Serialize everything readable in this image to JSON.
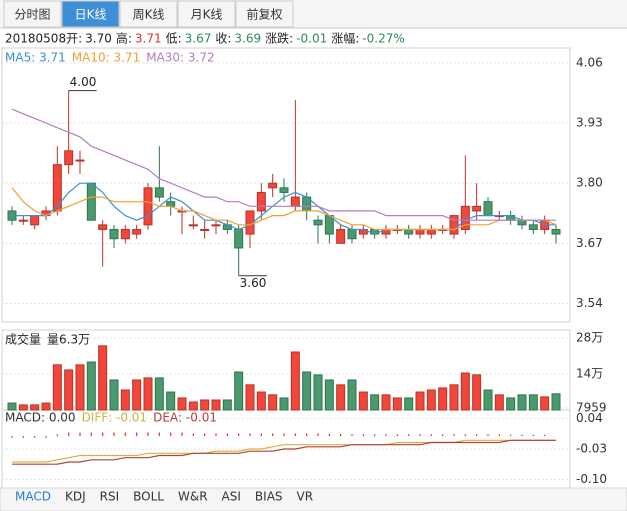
{
  "tabs": [
    {
      "label": "分时图"
    },
    {
      "label": "日K线",
      "active": true
    },
    {
      "label": "周K线"
    },
    {
      "label": "月K线"
    },
    {
      "label": "前复权"
    }
  ],
  "info": {
    "date": "20180508",
    "items": [
      {
        "label": "开:",
        "value": "3.70",
        "color": "#222222"
      },
      {
        "label": "高:",
        "value": "3.71",
        "color": "#e0302a"
      },
      {
        "label": "低:",
        "value": "3.67",
        "color": "#2e8b57"
      },
      {
        "label": "收:",
        "value": "3.69",
        "color": "#2e8b57"
      },
      {
        "label": "涨跌:",
        "value": "-0.01",
        "color": "#2e8b57"
      },
      {
        "label": "涨幅:",
        "value": "-0.27%",
        "color": "#2e8b57"
      }
    ]
  },
  "chart_data": [
    {
      "type": "candlestick",
      "legend_separator": ": ",
      "ylim": [
        3.5,
        4.09
      ],
      "yticks": [
        4.06,
        3.93,
        {
          "value": 3.8,
          "label": "3.80"
        },
        3.67,
        3.54
      ],
      "grid": true,
      "up_color": "#f0473a",
      "down_color": "#4a9a6e",
      "open": [
        3.74,
        3.72,
        3.71,
        3.73,
        3.74,
        3.84,
        3.85,
        3.8,
        3.7,
        3.7,
        3.68,
        3.69,
        3.71,
        3.79,
        3.76,
        3.74,
        3.71,
        3.7,
        3.71,
        3.71,
        3.7,
        3.69,
        3.74,
        3.79,
        3.79,
        3.75,
        3.77,
        3.72,
        3.73,
        3.67,
        3.7,
        3.69,
        3.7,
        3.69,
        3.7,
        3.7,
        3.69,
        3.69,
        3.7,
        3.69,
        3.7,
        3.74,
        3.76,
        3.73,
        3.73,
        3.72,
        3.71,
        3.7,
        3.7
      ],
      "high": [
        3.75,
        3.73,
        3.73,
        3.75,
        3.88,
        4.0,
        3.87,
        3.8,
        3.72,
        3.71,
        3.71,
        3.71,
        3.8,
        3.88,
        3.78,
        3.75,
        3.73,
        3.72,
        3.72,
        3.72,
        3.71,
        3.74,
        3.8,
        3.82,
        3.81,
        3.98,
        3.78,
        3.73,
        3.73,
        3.71,
        3.71,
        3.71,
        3.7,
        3.71,
        3.71,
        3.71,
        3.71,
        3.71,
        3.71,
        3.73,
        3.86,
        3.8,
        3.77,
        3.74,
        3.74,
        3.73,
        3.72,
        3.73,
        3.71
      ],
      "low": [
        3.71,
        3.71,
        3.7,
        3.72,
        3.73,
        3.82,
        3.82,
        3.72,
        3.62,
        3.66,
        3.67,
        3.68,
        3.7,
        3.76,
        3.73,
        3.69,
        3.7,
        3.68,
        3.69,
        3.69,
        3.6,
        3.66,
        3.72,
        3.77,
        3.76,
        3.74,
        3.72,
        3.67,
        3.67,
        3.67,
        3.67,
        3.68,
        3.68,
        3.68,
        3.69,
        3.68,
        3.68,
        3.68,
        3.69,
        3.68,
        3.69,
        3.72,
        3.73,
        3.72,
        3.71,
        3.7,
        3.69,
        3.69,
        3.67
      ],
      "close": [
        3.72,
        3.72,
        3.73,
        3.74,
        3.84,
        3.87,
        3.85,
        3.72,
        3.71,
        3.68,
        3.7,
        3.7,
        3.79,
        3.77,
        3.75,
        3.74,
        3.71,
        3.7,
        3.71,
        3.7,
        3.66,
        3.74,
        3.78,
        3.8,
        3.78,
        3.77,
        3.74,
        3.71,
        3.69,
        3.7,
        3.68,
        3.7,
        3.69,
        3.7,
        3.7,
        3.69,
        3.7,
        3.7,
        3.7,
        3.73,
        3.75,
        3.75,
        3.73,
        3.73,
        3.72,
        3.71,
        3.7,
        3.72,
        3.69
      ],
      "series": [
        {
          "name": "MA5",
          "color": "#3a8fd6",
          "value_label": "3.71",
          "values": [
            3.73,
            3.73,
            3.73,
            3.73,
            3.75,
            3.78,
            3.8,
            3.8,
            3.78,
            3.75,
            3.73,
            3.72,
            3.73,
            3.75,
            3.77,
            3.76,
            3.74,
            3.72,
            3.72,
            3.71,
            3.7,
            3.71,
            3.73,
            3.75,
            3.77,
            3.78,
            3.77,
            3.75,
            3.73,
            3.71,
            3.7,
            3.7,
            3.69,
            3.7,
            3.7,
            3.7,
            3.7,
            3.7,
            3.7,
            3.7,
            3.72,
            3.73,
            3.73,
            3.73,
            3.73,
            3.72,
            3.72,
            3.71,
            3.71
          ]
        },
        {
          "name": "MA10",
          "color": "#f0a030",
          "value_label": "3.71",
          "values": [
            3.79,
            3.76,
            3.74,
            3.73,
            3.74,
            3.75,
            3.76,
            3.77,
            3.77,
            3.76,
            3.76,
            3.76,
            3.76,
            3.75,
            3.75,
            3.74,
            3.74,
            3.73,
            3.72,
            3.72,
            3.71,
            3.71,
            3.72,
            3.73,
            3.73,
            3.74,
            3.74,
            3.74,
            3.73,
            3.72,
            3.71,
            3.71,
            3.7,
            3.7,
            3.7,
            3.7,
            3.7,
            3.7,
            3.7,
            3.7,
            3.71,
            3.71,
            3.71,
            3.72,
            3.72,
            3.72,
            3.72,
            3.72,
            3.71
          ]
        },
        {
          "name": "MA30",
          "color": "#b07fc0",
          "value_label": "3.72",
          "values": [
            3.96,
            3.95,
            3.94,
            3.93,
            3.92,
            3.91,
            3.9,
            3.88,
            3.87,
            3.86,
            3.85,
            3.84,
            3.83,
            3.81,
            3.8,
            3.79,
            3.78,
            3.77,
            3.77,
            3.76,
            3.76,
            3.75,
            3.75,
            3.75,
            3.75,
            3.75,
            3.75,
            3.75,
            3.74,
            3.74,
            3.74,
            3.74,
            3.74,
            3.73,
            3.73,
            3.73,
            3.73,
            3.73,
            3.73,
            3.72,
            3.72,
            3.72,
            3.72,
            3.72,
            3.72,
            3.72,
            3.72,
            3.72,
            3.72
          ]
        }
      ],
      "annotations": [
        {
          "value": 4.0,
          "label": "4.00"
        },
        {
          "value": 3.6,
          "label": "3.60"
        }
      ]
    },
    {
      "type": "volume",
      "title": "成交量",
      "series_label": "量6.3万",
      "ylim": [
        0,
        300000
      ],
      "yticks": [
        {
          "value": 280000,
          "label": "28万"
        },
        {
          "value": 140000,
          "label": "14万"
        },
        7959
      ],
      "values": [
        27000,
        20000,
        20000,
        27000,
        176000,
        156000,
        176000,
        187000,
        250000,
        117000,
        78000,
        117000,
        125000,
        125000,
        70000,
        47000,
        31000,
        39000,
        39000,
        39000,
        148000,
        98000,
        70000,
        59000,
        47000,
        226000,
        148000,
        137000,
        117000,
        98000,
        117000,
        70000,
        59000,
        59000,
        47000,
        47000,
        70000,
        78000,
        86000,
        98000,
        144000,
        137000,
        78000,
        59000,
        47000,
        59000,
        59000,
        51000,
        63000
      ]
    },
    {
      "type": "macd",
      "legend_separator": ": ",
      "ylim": [
        -0.12,
        0.06
      ],
      "yticks": [
        0.04,
        -0.03,
        {
          "value": -0.1,
          "label": "-0.10"
        }
      ],
      "up_color": "#e0302a",
      "down_color": "#2e8b57",
      "series": [
        {
          "name": "MACD",
          "color": "#333333",
          "value_label": "0.00",
          "values": [
            -0.004,
            -0.004,
            -0.004,
            -0.004,
            0.004,
            0.008,
            0.008,
            0.008,
            0.008,
            0.008,
            0.008,
            0.008,
            0.008,
            0.008,
            0.008,
            0.008,
            0.006,
            0.006,
            0.006,
            0.006,
            0.006,
            0.006,
            0.006,
            0.006,
            0.006,
            0.006,
            0.006,
            0.006,
            0.005,
            0.005,
            0.004,
            0.004,
            0.004,
            0.004,
            0.004,
            0.004,
            0.004,
            0.004,
            0.004,
            0.004,
            0.004,
            0.004,
            0.004,
            0.004,
            0.003,
            0.003,
            0.003,
            0.003,
            0
          ]
        },
        {
          "name": "DIFF",
          "color": "#d9b040",
          "value_label": "-0.01",
          "values": [
            -0.06,
            -0.06,
            -0.06,
            -0.06,
            -0.055,
            -0.05,
            -0.045,
            -0.045,
            -0.045,
            -0.045,
            -0.045,
            -0.045,
            -0.04,
            -0.04,
            -0.04,
            -0.04,
            -0.04,
            -0.04,
            -0.035,
            -0.035,
            -0.035,
            -0.03,
            -0.03,
            -0.025,
            -0.02,
            -0.02,
            -0.02,
            -0.02,
            -0.02,
            -0.02,
            -0.02,
            -0.02,
            -0.02,
            -0.02,
            -0.015,
            -0.015,
            -0.015,
            -0.015,
            -0.015,
            -0.015,
            -0.01,
            -0.01,
            -0.01,
            -0.01,
            -0.01,
            -0.01,
            -0.01,
            -0.01,
            -0.01
          ]
        },
        {
          "name": "DEA",
          "color": "#b0413e",
          "value_label": "-0.01",
          "values": [
            -0.065,
            -0.065,
            -0.065,
            -0.065,
            -0.065,
            -0.06,
            -0.06,
            -0.055,
            -0.055,
            -0.055,
            -0.05,
            -0.05,
            -0.05,
            -0.045,
            -0.045,
            -0.045,
            -0.04,
            -0.04,
            -0.04,
            -0.04,
            -0.04,
            -0.035,
            -0.035,
            -0.035,
            -0.03,
            -0.03,
            -0.025,
            -0.025,
            -0.025,
            -0.025,
            -0.02,
            -0.02,
            -0.02,
            -0.02,
            -0.02,
            -0.02,
            -0.02,
            -0.015,
            -0.015,
            -0.015,
            -0.015,
            -0.015,
            -0.015,
            -0.015,
            -0.01,
            -0.01,
            -0.01,
            -0.01,
            -0.01
          ]
        }
      ]
    }
  ],
  "indicator_tabs": [
    {
      "label": "MACD",
      "active": true
    },
    {
      "label": "KDJ"
    },
    {
      "label": "RSI"
    },
    {
      "label": "BOLL"
    },
    {
      "label": "W&R"
    },
    {
      "label": "ASI"
    },
    {
      "label": "BIAS"
    },
    {
      "label": "VR"
    }
  ]
}
